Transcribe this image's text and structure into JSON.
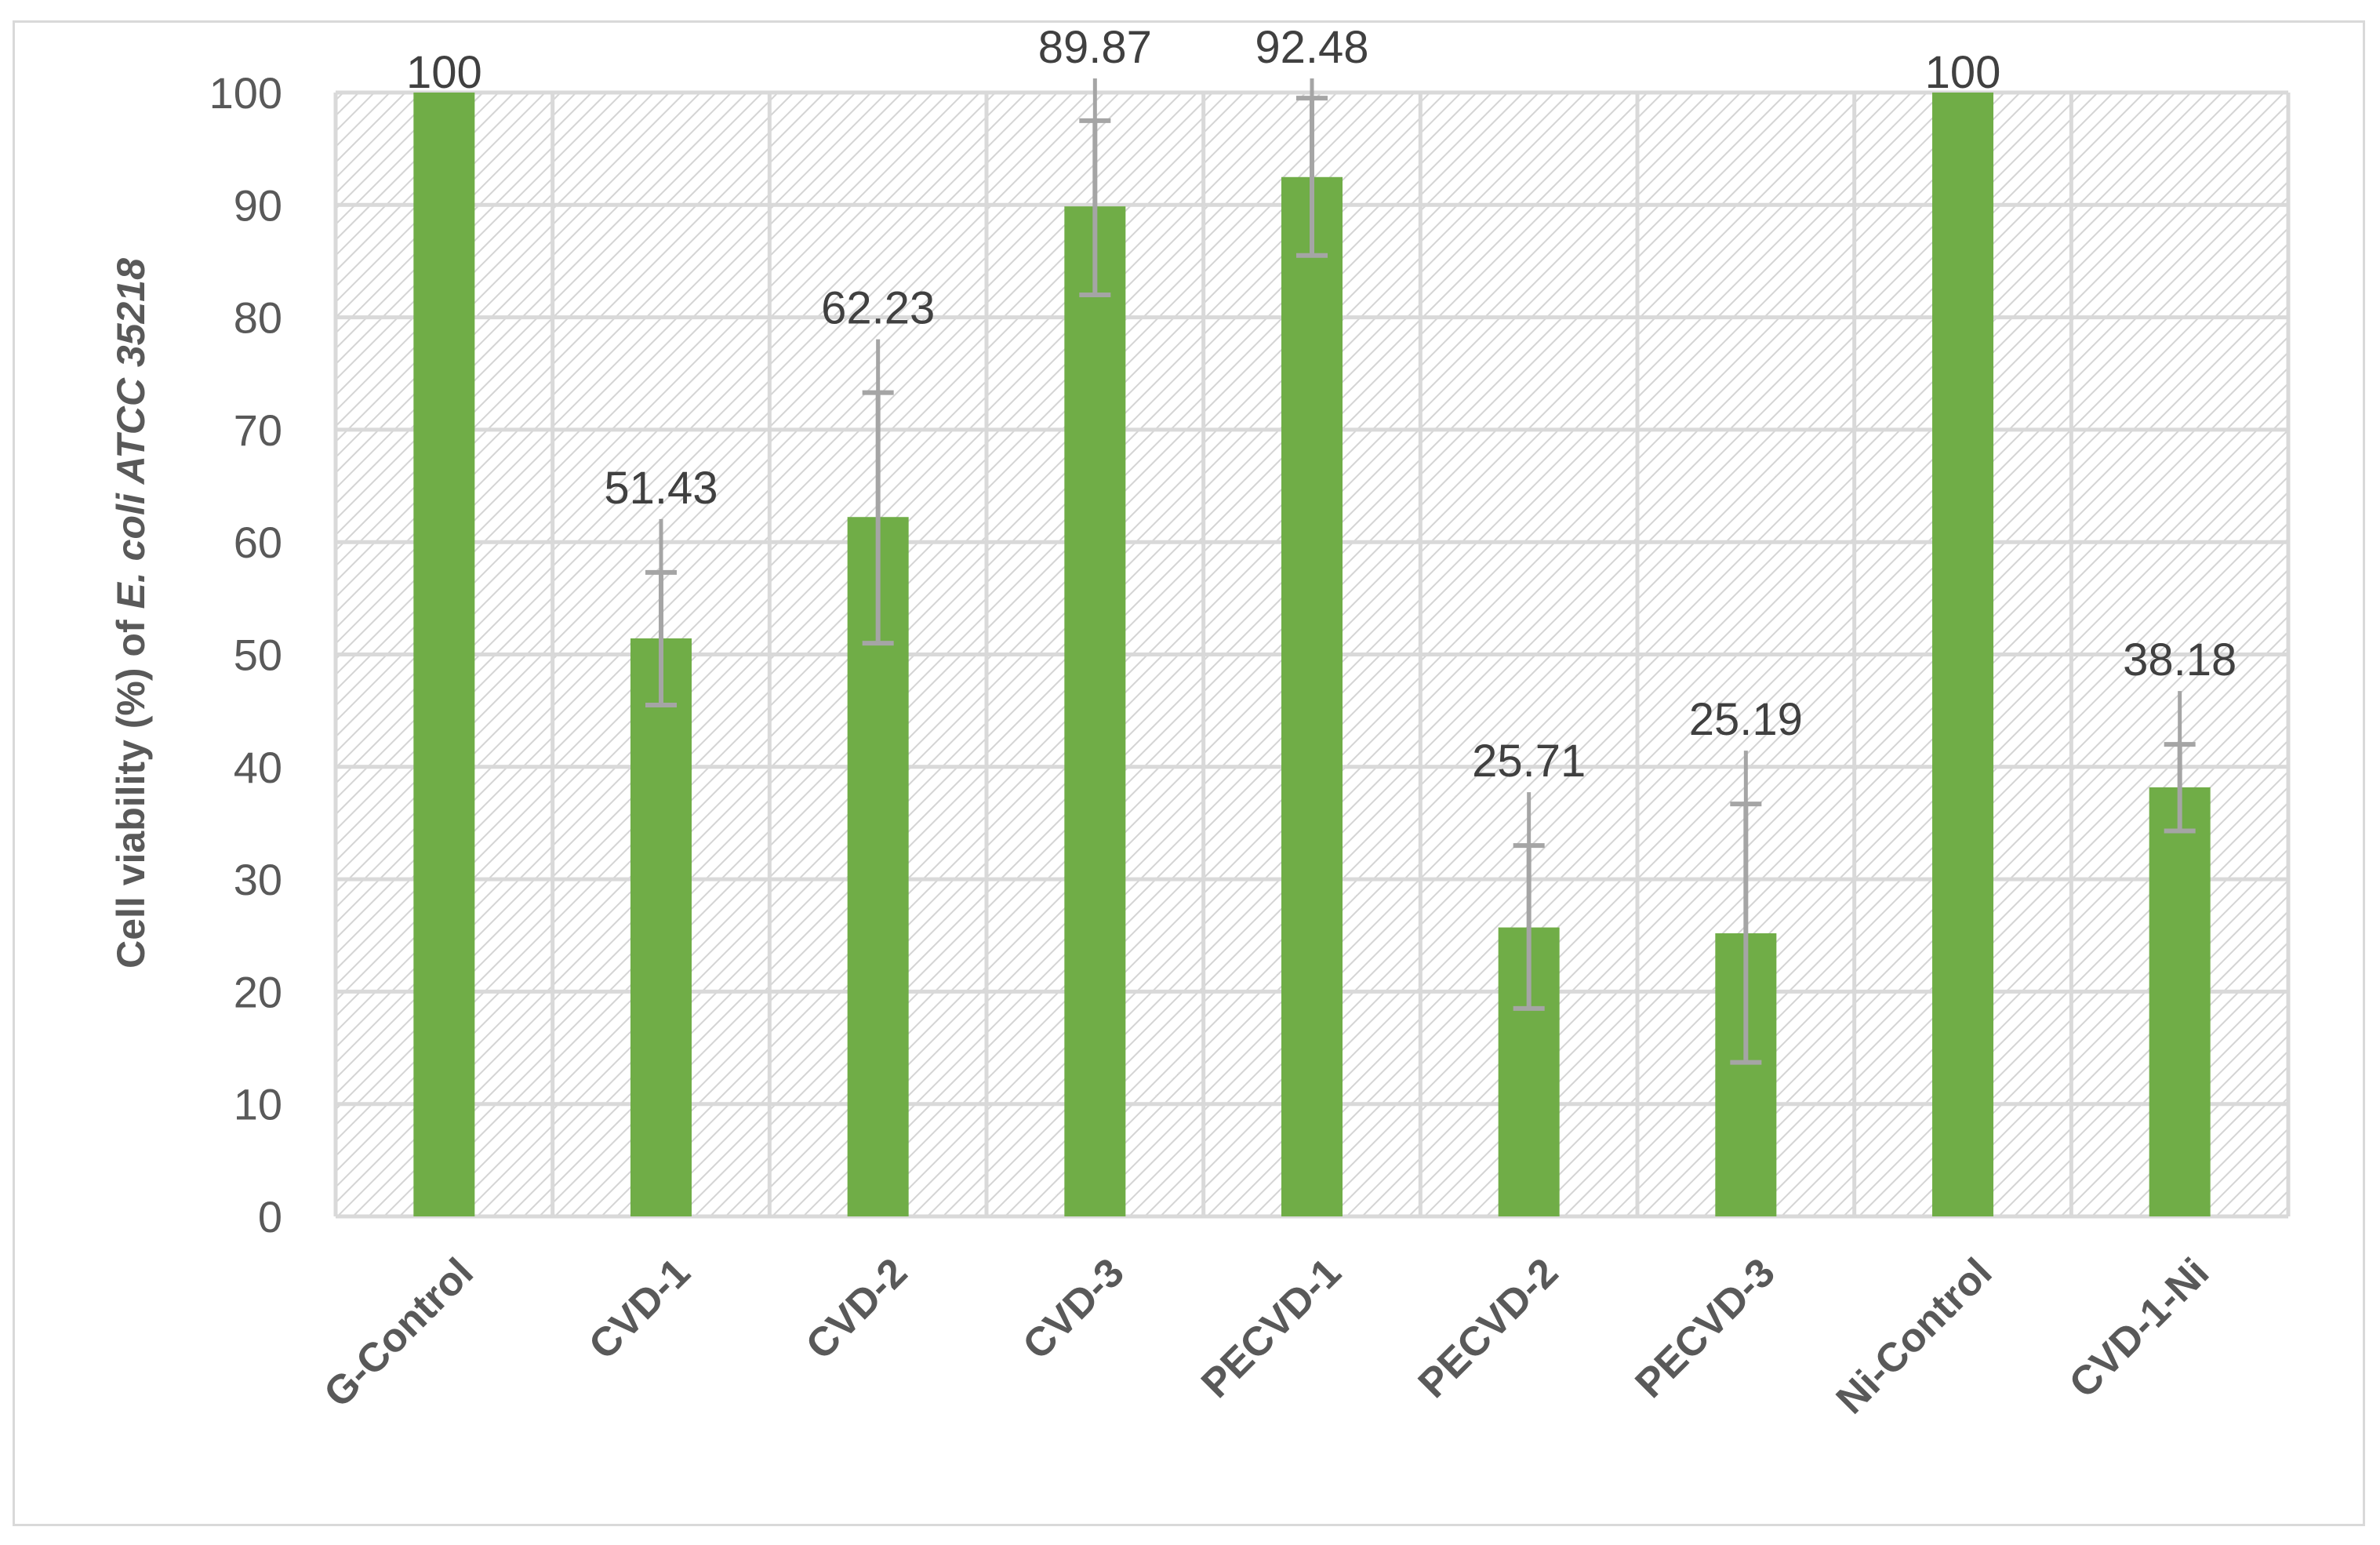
{
  "chart_data": {
    "type": "bar",
    "categories": [
      "G-Control",
      "CVD-1",
      "CVD-2",
      "CVD-3",
      "PECVD-1",
      "PECVD-2",
      "PECVD-3",
      "Ni-Control",
      "CVD-1-Ni"
    ],
    "series": [
      {
        "values": [
          100,
          51.43,
          62.23,
          89.87,
          92.48,
          25.71,
          25.19,
          100,
          38.18
        ],
        "error_low": [
          100,
          45.5,
          51,
          82,
          85.5,
          18.5,
          13.7,
          100,
          34.3
        ],
        "error_high": [
          100,
          57.3,
          73.3,
          97.5,
          99.5,
          33,
          36.7,
          100,
          42
        ]
      }
    ],
    "data_labels": [
      "100",
      "51.43",
      "62.23",
      "89.87",
      "92.48",
      "25.71",
      "25.19",
      "100",
      "38.18"
    ],
    "ylabel": "Cell viability (%) of E. coli  ATCC 35218",
    "ylabel_parts": [
      {
        "text": "Cell viability (%) of ",
        "italic": false
      },
      {
        "text": "E. coli  ATCC 35218",
        "italic": true
      }
    ],
    "ylim": [
      0,
      100
    ],
    "yticks": [
      0,
      10,
      20,
      30,
      40,
      50,
      60,
      70,
      80,
      90,
      100
    ],
    "grid": true,
    "legend": false,
    "colors": {
      "bar": "#70ad47",
      "error_bar": "#a5a5a5",
      "grid": "#d9d9d9",
      "hatch": "#d4d4d4",
      "axis_text": "#595959",
      "label_text": "#404040"
    }
  }
}
